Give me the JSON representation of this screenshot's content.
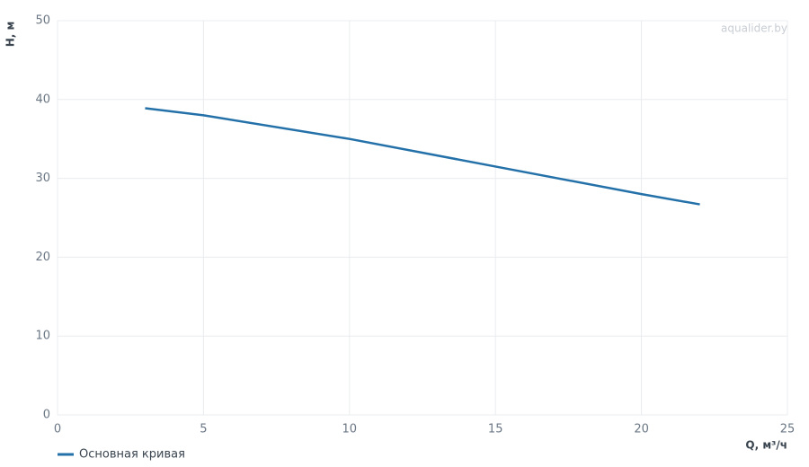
{
  "chart_data": {
    "type": "line",
    "x": [
      3,
      5,
      10,
      15,
      20,
      22
    ],
    "series": [
      {
        "name": "Основная кривая",
        "color": "#2471a9",
        "values": [
          38.9,
          38.0,
          35.0,
          31.5,
          28.0,
          26.7
        ]
      }
    ],
    "xlim": [
      0,
      25
    ],
    "xticks": [
      0,
      5,
      10,
      15,
      20,
      25
    ],
    "ylim": [
      0,
      50
    ],
    "yticks": [
      0,
      10,
      20,
      30,
      40,
      50
    ],
    "x_label": "Q, м³/ч",
    "y_label": "H, м",
    "watermark": "aqualider.by",
    "grid": true,
    "legend": "bottom-left"
  }
}
